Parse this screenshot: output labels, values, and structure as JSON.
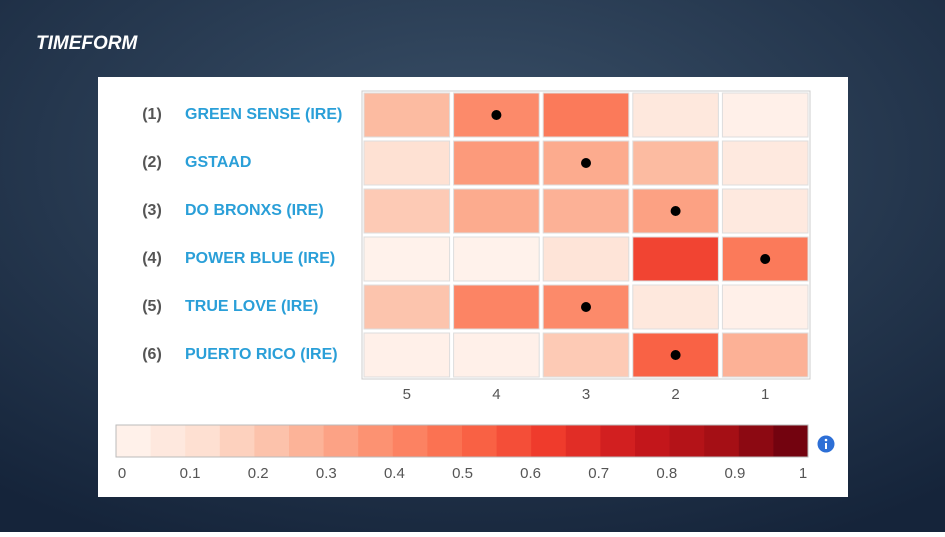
{
  "brand": "TIMEFORM",
  "chart_data": {
    "type": "heatmap",
    "row_numbers": [
      "(1)",
      "(2)",
      "(3)",
      "(4)",
      "(5)",
      "(6)"
    ],
    "rows": [
      "GREEN SENSE (IRE)",
      "GSTAAD",
      "DO BRONXS (IRE)",
      "POWER BLUE (IRE)",
      "TRUE LOVE (IRE)",
      "PUERTO RICO (IRE)"
    ],
    "columns": [
      "5",
      "4",
      "3",
      "2",
      "1"
    ],
    "values": [
      [
        0.25,
        0.4,
        0.45,
        0.08,
        0.03
      ],
      [
        0.12,
        0.35,
        0.3,
        0.25,
        0.07
      ],
      [
        0.2,
        0.3,
        0.28,
        0.33,
        0.07
      ],
      [
        0.02,
        0.02,
        0.1,
        0.6,
        0.45
      ],
      [
        0.22,
        0.42,
        0.4,
        0.08,
        0.03
      ],
      [
        0.03,
        0.03,
        0.2,
        0.52,
        0.28
      ]
    ],
    "dot_columns": [
      1,
      2,
      3,
      4,
      2,
      3
    ],
    "clim": [
      0,
      1
    ],
    "cticks": [
      0,
      0.1,
      0.2,
      0.3,
      0.4,
      0.5,
      0.6,
      0.7,
      0.8,
      0.9,
      1
    ],
    "colorscale": [
      "#fff5f0",
      "#fee0d2",
      "#fcbba1",
      "#fc9272",
      "#fb6a4a",
      "#ef3b2c",
      "#cb181d",
      "#a50f15",
      "#67000d"
    ],
    "colorbar_steps": 20
  }
}
